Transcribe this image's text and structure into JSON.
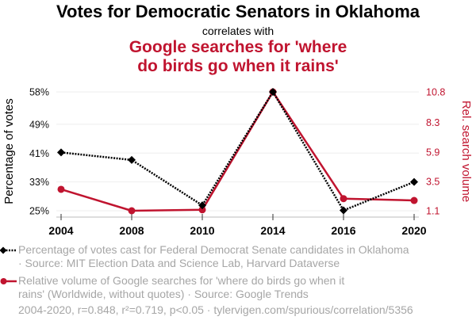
{
  "header": {
    "title": "Votes for Democratic Senators in Oklahoma",
    "subtitle": "correlates with",
    "title2_line1": "Google searches for 'where",
    "title2_line2": "do birds go when it rains'"
  },
  "colors": {
    "series1": "#000000",
    "series2": "#c0142f",
    "grid": "#eeeeee",
    "axis": "#bbbbbb",
    "legend_text": "#a6a6a6"
  },
  "chart_data": {
    "type": "line",
    "title": "Votes for Democratic Senators in Oklahoma correlates with Google searches for 'where do birds go when it rains'",
    "x": [
      "2004",
      "2008",
      "2010",
      "2014",
      "2016",
      "2020"
    ],
    "xlabel": "",
    "ylabel": "Percentage of votes",
    "y2label": "Rel. search volume",
    "ylim": [
      25,
      58
    ],
    "y2lim": [
      1.1,
      10.8
    ],
    "yticks": [
      "58%",
      "49%",
      "41%",
      "33%",
      "25%"
    ],
    "yticks_values": [
      58,
      49,
      41,
      33,
      25
    ],
    "y2ticks": [
      "10.8",
      "8.3",
      "5.9",
      "3.5",
      "1.1"
    ],
    "y2ticks_values": [
      10.8,
      8.3,
      5.9,
      3.5,
      1.1
    ],
    "grid": true,
    "series": [
      {
        "name": "Percentage of votes cast for Federal Democrat Senate candidates in Oklahoma",
        "axis": "left",
        "marker": "diamond",
        "style": "dotted",
        "values": [
          41.2,
          39.1,
          26.5,
          58.0,
          25.1,
          33.0
        ]
      },
      {
        "name": "Relative volume of Google searches for 'where do birds go when it rains' (Worldwide, without quotes)",
        "axis": "right",
        "marker": "circle",
        "style": "solid",
        "values": [
          2.85,
          1.1,
          1.18,
          10.8,
          2.09,
          1.94
        ]
      }
    ],
    "legend_position": "bottom"
  },
  "legend": {
    "item1_line1": "Percentage of votes cast for Federal Democrat Senate candidates in Oklahoma",
    "item1_line2": "· Source: MIT Election Data and Science Lab, Harvard Dataverse",
    "item2_line1": "Relative volume of Google searches for 'where do birds go when it",
    "item2_line2": "rains' (Worldwide, without quotes) · Source: Google Trends"
  },
  "footer": {
    "text": "2004-2020, r=0.848, r²=0.719, p<0.05 · tylervigen.com/spurious/correlation/5356"
  }
}
